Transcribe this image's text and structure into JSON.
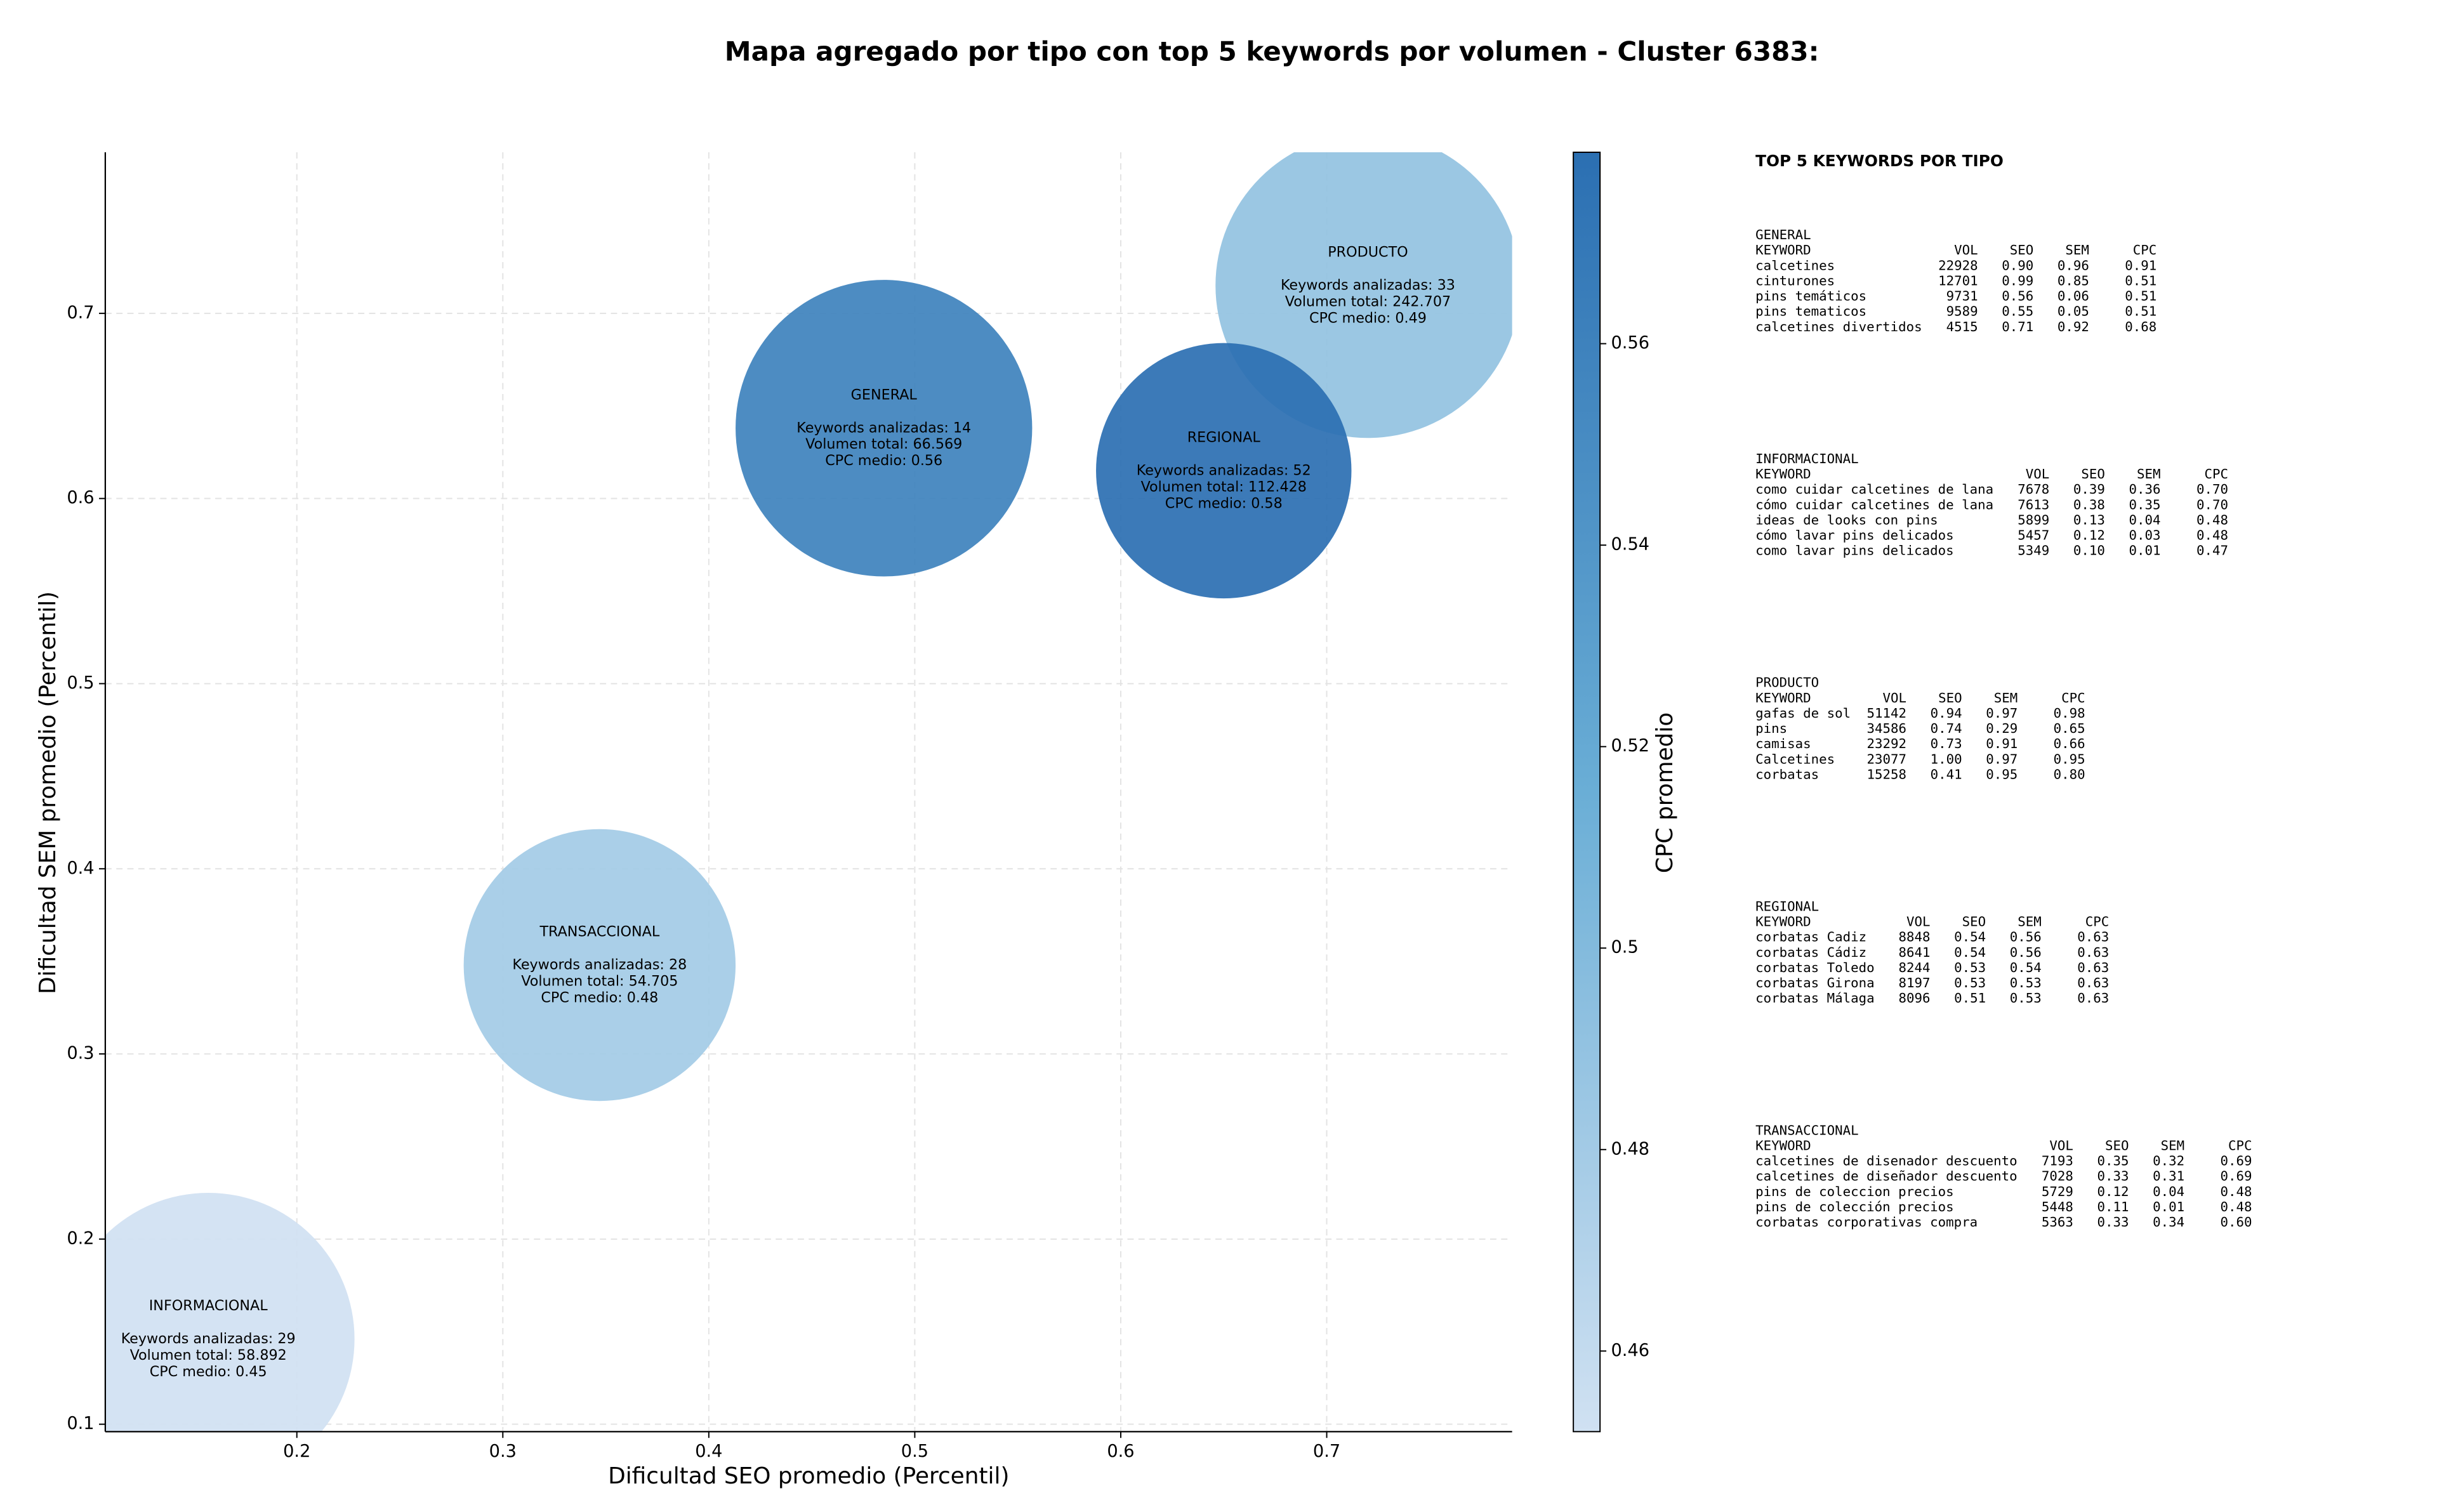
{
  "chart_data": {
    "type": "bubble",
    "title": "Mapa agregado por tipo con top 5 keywords por volumen - Cluster 6383:",
    "xlabel": "Dificultad SEO promedio (Percentil)",
    "ylabel": "Dificultad SEM promedio (Percentil)",
    "xlim": [
      0.107,
      0.79
    ],
    "ylim": [
      0.096,
      0.787
    ],
    "xticks": [
      0.2,
      0.3,
      0.4,
      0.5,
      0.6,
      0.7
    ],
    "yticks": [
      0.1,
      0.2,
      0.3,
      0.4,
      0.5,
      0.6,
      0.7
    ],
    "grid": true,
    "colorbar": {
      "label": "CPC promedio",
      "clim": [
        0.452,
        0.579
      ],
      "ticks": [
        0.46,
        0.48,
        0.5,
        0.52,
        0.54,
        0.56
      ],
      "colormap": [
        "#d0e1f2",
        "#6aaed6",
        "#2b6fb2"
      ]
    },
    "points": [
      {
        "name": "GENERAL",
        "x": 0.485,
        "y": 0.638,
        "size": 0.072,
        "cpc": 0.56,
        "label": [
          "Keywords analizadas: 14",
          "Volumen total: 66.569",
          "CPC medio: 0.56"
        ]
      },
      {
        "name": "PRODUCTO",
        "x": 0.72,
        "y": 0.715,
        "size": 0.074,
        "cpc": 0.49,
        "label": [
          "Keywords analizadas: 33",
          "Volumen total: 242.707",
          "CPC medio: 0.49"
        ]
      },
      {
        "name": "REGIONAL",
        "x": 0.65,
        "y": 0.615,
        "size": 0.062,
        "cpc": 0.58,
        "label": [
          "Keywords analizadas: 52",
          "Volumen total: 112.428",
          "CPC medio: 0.58"
        ]
      },
      {
        "name": "TRANSACCIONAL",
        "x": 0.347,
        "y": 0.348,
        "size": 0.066,
        "cpc": 0.48,
        "label": [
          "Keywords analizadas: 28",
          "Volumen total: 54.705",
          "CPC medio: 0.48"
        ]
      },
      {
        "name": "INFORMACIONAL",
        "x": 0.157,
        "y": 0.146,
        "size": 0.071,
        "cpc": 0.45,
        "label": [
          "Keywords analizadas: 29",
          "Volumen total: 58.892",
          "CPC medio: 0.45"
        ]
      }
    ]
  },
  "keyword_tables": {
    "title": "TOP 5 KEYWORDS POR TIPO",
    "sections": [
      {
        "name": "GENERAL",
        "header": [
          "KEYWORD",
          "VOL",
          "SEO",
          "SEM",
          "CPC"
        ],
        "rows": [
          [
            "calcetines",
            "22928",
            "0.90",
            "0.96",
            "0.91"
          ],
          [
            "cinturones",
            "12701",
            "0.99",
            "0.85",
            "0.51"
          ],
          [
            "pins temáticos",
            "9731",
            "0.56",
            "0.06",
            "0.51"
          ],
          [
            "pins tematicos",
            "9589",
            "0.55",
            "0.05",
            "0.51"
          ],
          [
            "calcetines divertidos",
            "4515",
            "0.71",
            "0.92",
            "0.68"
          ]
        ]
      },
      {
        "name": "INFORMACIONAL",
        "header": [
          "KEYWORD",
          "VOL",
          "SEO",
          "SEM",
          "CPC"
        ],
        "rows": [
          [
            "como cuidar calcetines de lana",
            "7678",
            "0.39",
            "0.36",
            "0.70"
          ],
          [
            "cómo cuidar calcetines de lana",
            "7613",
            "0.38",
            "0.35",
            "0.70"
          ],
          [
            "ideas de looks con pins",
            "5899",
            "0.13",
            "0.04",
            "0.48"
          ],
          [
            "cómo lavar pins delicados",
            "5457",
            "0.12",
            "0.03",
            "0.48"
          ],
          [
            "como lavar pins delicados",
            "5349",
            "0.10",
            "0.01",
            "0.47"
          ]
        ]
      },
      {
        "name": "PRODUCTO",
        "header": [
          "KEYWORD",
          "VOL",
          "SEO",
          "SEM",
          "CPC"
        ],
        "rows": [
          [
            "gafas de sol",
            "51142",
            "0.94",
            "0.97",
            "0.98"
          ],
          [
            "pins",
            "34586",
            "0.74",
            "0.29",
            "0.65"
          ],
          [
            "camisas",
            "23292",
            "0.73",
            "0.91",
            "0.66"
          ],
          [
            "Calcetines",
            "23077",
            "1.00",
            "0.97",
            "0.95"
          ],
          [
            "corbatas",
            "15258",
            "0.41",
            "0.95",
            "0.80"
          ]
        ]
      },
      {
        "name": "REGIONAL",
        "header": [
          "KEYWORD",
          "VOL",
          "SEO",
          "SEM",
          "CPC"
        ],
        "rows": [
          [
            "corbatas Cadiz",
            "8848",
            "0.54",
            "0.56",
            "0.63"
          ],
          [
            "corbatas Cádiz",
            "8641",
            "0.54",
            "0.56",
            "0.63"
          ],
          [
            "corbatas Toledo",
            "8244",
            "0.53",
            "0.54",
            "0.63"
          ],
          [
            "corbatas Girona",
            "8197",
            "0.53",
            "0.53",
            "0.63"
          ],
          [
            "corbatas Málaga",
            "8096",
            "0.51",
            "0.53",
            "0.63"
          ]
        ]
      },
      {
        "name": "TRANSACCIONAL",
        "header": [
          "KEYWORD",
          "VOL",
          "SEO",
          "SEM",
          "CPC"
        ],
        "rows": [
          [
            "calcetines de disenador descuento",
            "7193",
            "0.35",
            "0.32",
            "0.69"
          ],
          [
            "calcetines de diseñador descuento",
            "7028",
            "0.33",
            "0.31",
            "0.69"
          ],
          [
            "pins de coleccion precios",
            "5729",
            "0.12",
            "0.04",
            "0.48"
          ],
          [
            "pins de colección precios",
            "5448",
            "0.11",
            "0.01",
            "0.48"
          ],
          [
            "corbatas corporativas compra",
            "5363",
            "0.33",
            "0.34",
            "0.60"
          ]
        ]
      }
    ]
  }
}
